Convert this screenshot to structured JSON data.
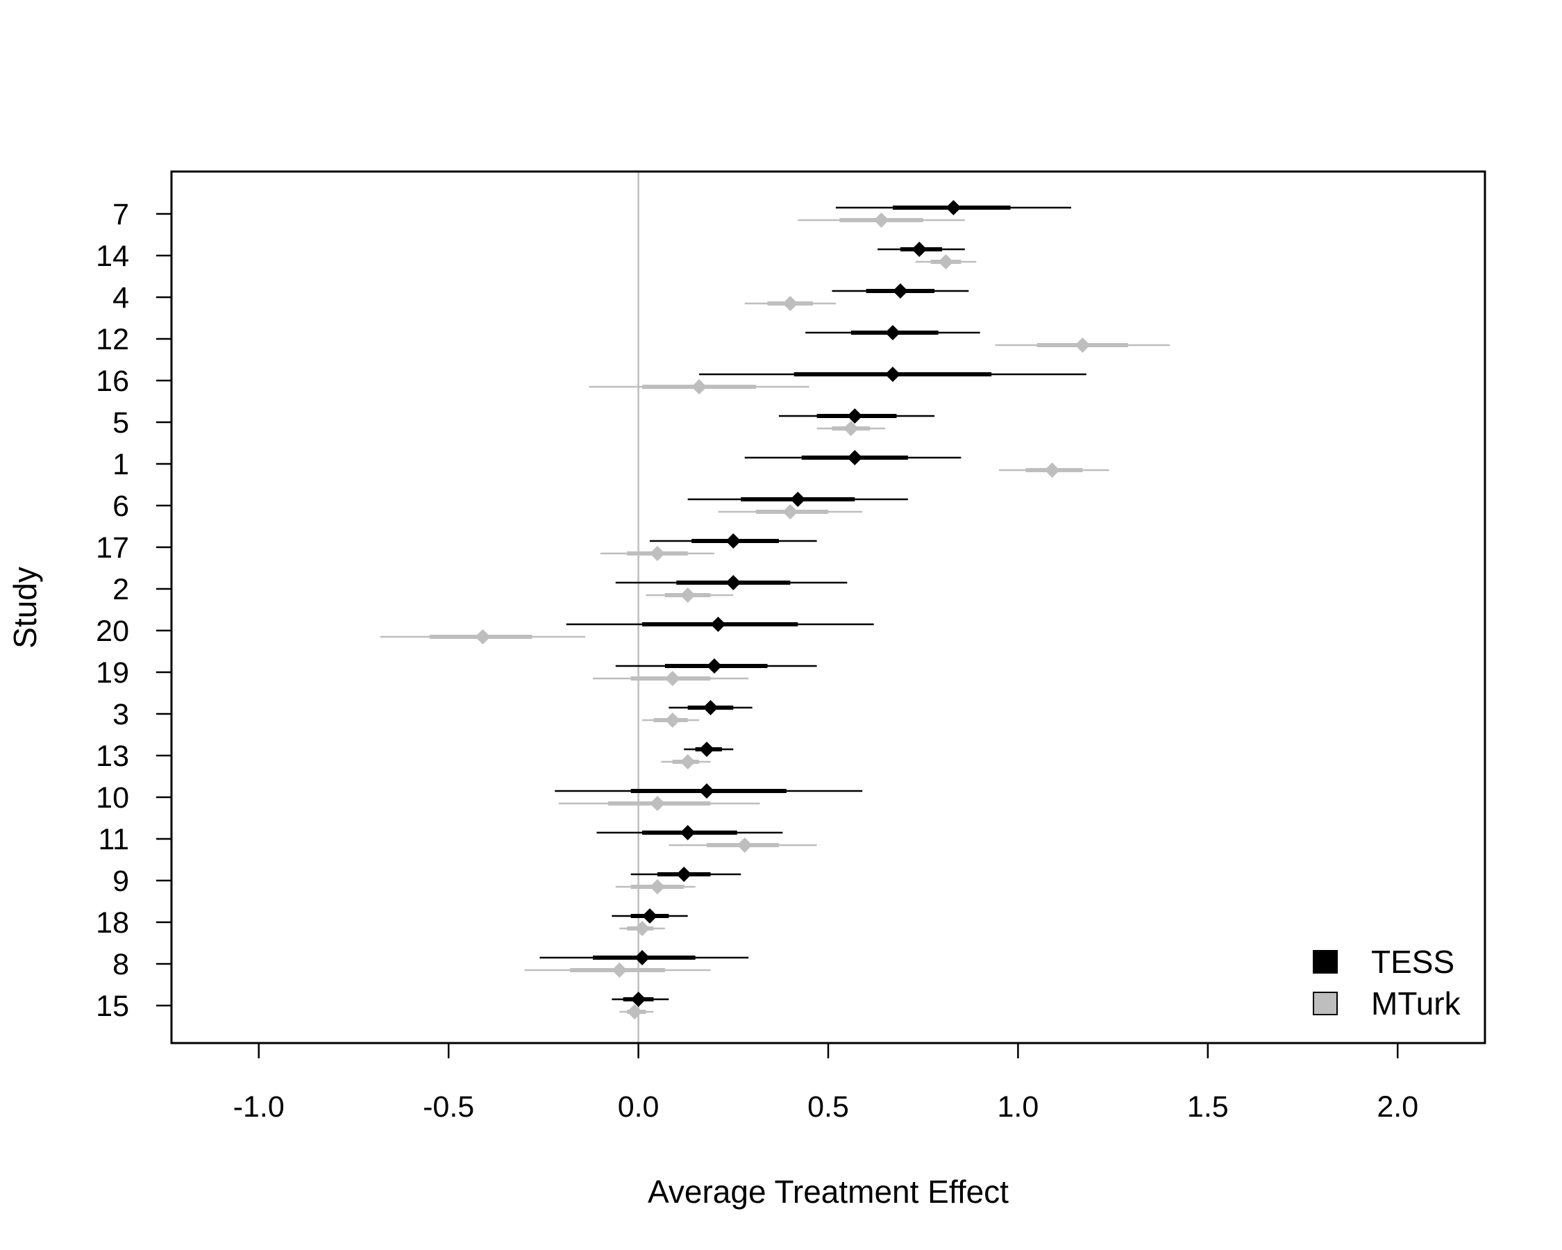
{
  "chart_data": {
    "type": "forest",
    "title": "",
    "xlabel": "Average Treatment Effect",
    "ylabel": "Study",
    "xlim": [
      -1.23,
      2.23
    ],
    "xticks": [
      -1.0,
      -0.5,
      0.0,
      0.5,
      1.0,
      1.5,
      2.0
    ],
    "xtick_labels": [
      "-1.0",
      "-0.5",
      "0.0",
      "0.5",
      "1.0",
      "1.5",
      "2.0"
    ],
    "reference_line_x": 0,
    "grid": false,
    "legend_position": "bottom-right",
    "colors": {
      "TESS": "#000000",
      "MTurk": "#bebebe",
      "reference_line": "#bebebe"
    },
    "studies": [
      "7",
      "14",
      "4",
      "12",
      "16",
      "5",
      "1",
      "6",
      "17",
      "2",
      "20",
      "19",
      "3",
      "13",
      "10",
      "11",
      "9",
      "18",
      "8",
      "15"
    ],
    "series": [
      {
        "name": "TESS",
        "estimates": [
          {
            "study": "7",
            "est": 0.83,
            "ci90": [
              0.67,
              0.98
            ],
            "ci95": [
              0.52,
              1.14
            ]
          },
          {
            "study": "14",
            "est": 0.74,
            "ci90": [
              0.69,
              0.8
            ],
            "ci95": [
              0.63,
              0.86
            ]
          },
          {
            "study": "4",
            "est": 0.69,
            "ci90": [
              0.6,
              0.78
            ],
            "ci95": [
              0.51,
              0.87
            ]
          },
          {
            "study": "12",
            "est": 0.67,
            "ci90": [
              0.56,
              0.79
            ],
            "ci95": [
              0.44,
              0.9
            ]
          },
          {
            "study": "16",
            "est": 0.67,
            "ci90": [
              0.41,
              0.93
            ],
            "ci95": [
              0.16,
              1.18
            ]
          },
          {
            "study": "5",
            "est": 0.57,
            "ci90": [
              0.47,
              0.68
            ],
            "ci95": [
              0.37,
              0.78
            ]
          },
          {
            "study": "1",
            "est": 0.57,
            "ci90": [
              0.43,
              0.71
            ],
            "ci95": [
              0.28,
              0.85
            ]
          },
          {
            "study": "6",
            "est": 0.42,
            "ci90": [
              0.27,
              0.57
            ],
            "ci95": [
              0.13,
              0.71
            ]
          },
          {
            "study": "17",
            "est": 0.25,
            "ci90": [
              0.14,
              0.37
            ],
            "ci95": [
              0.03,
              0.47
            ]
          },
          {
            "study": "2",
            "est": 0.25,
            "ci90": [
              0.1,
              0.4
            ],
            "ci95": [
              -0.06,
              0.55
            ]
          },
          {
            "study": "20",
            "est": 0.21,
            "ci90": [
              0.01,
              0.42
            ],
            "ci95": [
              -0.19,
              0.62
            ]
          },
          {
            "study": "19",
            "est": 0.2,
            "ci90": [
              0.07,
              0.34
            ],
            "ci95": [
              -0.06,
              0.47
            ]
          },
          {
            "study": "3",
            "est": 0.19,
            "ci90": [
              0.13,
              0.25
            ],
            "ci95": [
              0.08,
              0.3
            ]
          },
          {
            "study": "13",
            "est": 0.18,
            "ci90": [
              0.15,
              0.22
            ],
            "ci95": [
              0.12,
              0.25
            ]
          },
          {
            "study": "10",
            "est": 0.18,
            "ci90": [
              -0.02,
              0.39
            ],
            "ci95": [
              -0.22,
              0.59
            ]
          },
          {
            "study": "11",
            "est": 0.13,
            "ci90": [
              0.01,
              0.26
            ],
            "ci95": [
              -0.11,
              0.38
            ]
          },
          {
            "study": "9",
            "est": 0.12,
            "ci90": [
              0.05,
              0.19
            ],
            "ci95": [
              -0.02,
              0.27
            ]
          },
          {
            "study": "18",
            "est": 0.03,
            "ci90": [
              -0.02,
              0.08
            ],
            "ci95": [
              -0.07,
              0.13
            ]
          },
          {
            "study": "8",
            "est": 0.01,
            "ci90": [
              -0.12,
              0.15
            ],
            "ci95": [
              -0.26,
              0.29
            ]
          },
          {
            "study": "15",
            "est": 0.0,
            "ci90": [
              -0.04,
              0.04
            ],
            "ci95": [
              -0.07,
              0.08
            ]
          }
        ]
      },
      {
        "name": "MTurk",
        "estimates": [
          {
            "study": "7",
            "est": 0.64,
            "ci90": [
              0.53,
              0.75
            ],
            "ci95": [
              0.42,
              0.86
            ]
          },
          {
            "study": "14",
            "est": 0.81,
            "ci90": [
              0.77,
              0.85
            ],
            "ci95": [
              0.73,
              0.89
            ]
          },
          {
            "study": "4",
            "est": 0.4,
            "ci90": [
              0.34,
              0.46
            ],
            "ci95": [
              0.28,
              0.52
            ]
          },
          {
            "study": "12",
            "est": 1.17,
            "ci90": [
              1.05,
              1.29
            ],
            "ci95": [
              0.94,
              1.4
            ]
          },
          {
            "study": "16",
            "est": 0.16,
            "ci90": [
              0.01,
              0.31
            ],
            "ci95": [
              -0.13,
              0.45
            ]
          },
          {
            "study": "5",
            "est": 0.56,
            "ci90": [
              0.51,
              0.61
            ],
            "ci95": [
              0.47,
              0.65
            ]
          },
          {
            "study": "1",
            "est": 1.09,
            "ci90": [
              1.02,
              1.17
            ],
            "ci95": [
              0.95,
              1.24
            ]
          },
          {
            "study": "6",
            "est": 0.4,
            "ci90": [
              0.31,
              0.5
            ],
            "ci95": [
              0.21,
              0.59
            ]
          },
          {
            "study": "17",
            "est": 0.05,
            "ci90": [
              -0.03,
              0.13
            ],
            "ci95": [
              -0.1,
              0.2
            ]
          },
          {
            "study": "2",
            "est": 0.13,
            "ci90": [
              0.07,
              0.19
            ],
            "ci95": [
              0.02,
              0.25
            ]
          },
          {
            "study": "20",
            "est": -0.41,
            "ci90": [
              -0.55,
              -0.28
            ],
            "ci95": [
              -0.68,
              -0.14
            ]
          },
          {
            "study": "19",
            "est": 0.09,
            "ci90": [
              -0.02,
              0.19
            ],
            "ci95": [
              -0.12,
              0.29
            ]
          },
          {
            "study": "3",
            "est": 0.09,
            "ci90": [
              0.04,
              0.13
            ],
            "ci95": [
              0.01,
              0.16
            ]
          },
          {
            "study": "13",
            "est": 0.13,
            "ci90": [
              0.09,
              0.16
            ],
            "ci95": [
              0.06,
              0.19
            ]
          },
          {
            "study": "10",
            "est": 0.05,
            "ci90": [
              -0.08,
              0.19
            ],
            "ci95": [
              -0.21,
              0.32
            ]
          },
          {
            "study": "11",
            "est": 0.28,
            "ci90": [
              0.18,
              0.37
            ],
            "ci95": [
              0.08,
              0.47
            ]
          },
          {
            "study": "9",
            "est": 0.05,
            "ci90": [
              -0.02,
              0.12
            ],
            "ci95": [
              -0.06,
              0.15
            ]
          },
          {
            "study": "18",
            "est": 0.01,
            "ci90": [
              -0.03,
              0.04
            ],
            "ci95": [
              -0.05,
              0.07
            ]
          },
          {
            "study": "8",
            "est": -0.05,
            "ci90": [
              -0.18,
              0.07
            ],
            "ci95": [
              -0.3,
              0.19
            ]
          },
          {
            "study": "15",
            "est": -0.01,
            "ci90": [
              -0.03,
              0.02
            ],
            "ci95": [
              -0.05,
              0.04
            ]
          }
        ]
      }
    ]
  }
}
